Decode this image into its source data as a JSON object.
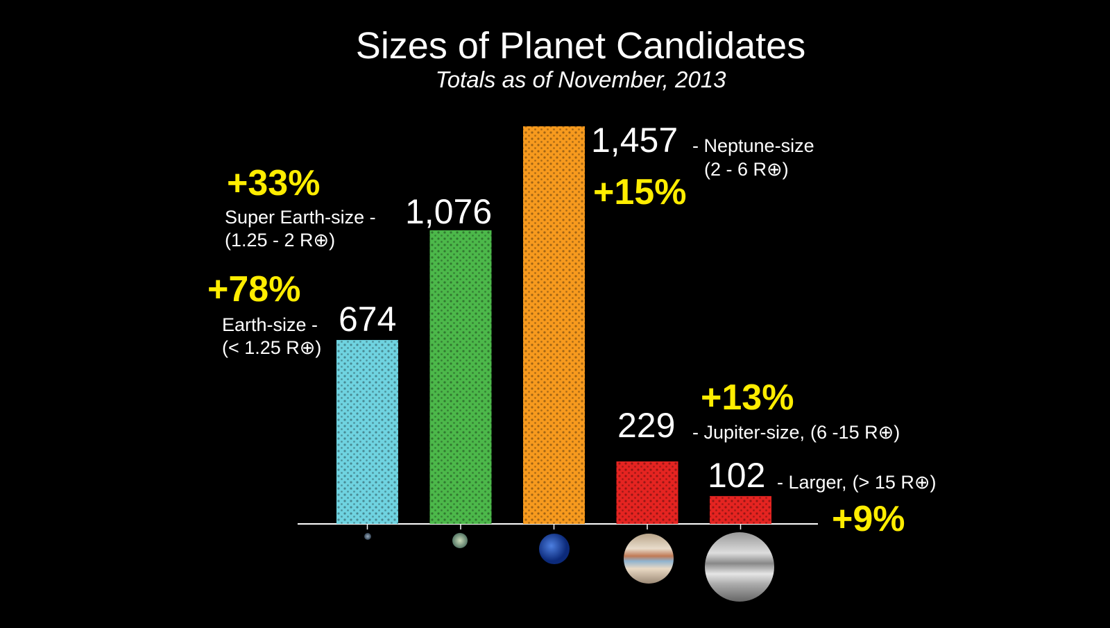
{
  "chart_data": {
    "type": "bar",
    "title": "Sizes of Planet Candidates",
    "subtitle": "Totals as of November, 2013",
    "categories": [
      "Earth-size -",
      "Super Earth-size -",
      "- Neptune-size",
      "- Jupiter-size,",
      "- Larger,"
    ],
    "ranges": [
      "(< 1.25 R⊕)",
      "(1.25 - 2 R⊕)",
      "(2 - 6 R⊕)",
      "(6 -15 R⊕)",
      "(> 15 R⊕)"
    ],
    "values": [
      674,
      1076,
      1457,
      229,
      102
    ],
    "value_labels": [
      "674",
      "1,076",
      "1,457",
      "229",
      "102"
    ],
    "growth_labels": [
      "+78%",
      "+33%",
      "+15%",
      "+13%",
      "+9%"
    ],
    "colors": [
      "#6fd3e0",
      "#4cb84a",
      "#f79a1e",
      "#e52421",
      "#e52421"
    ]
  }
}
